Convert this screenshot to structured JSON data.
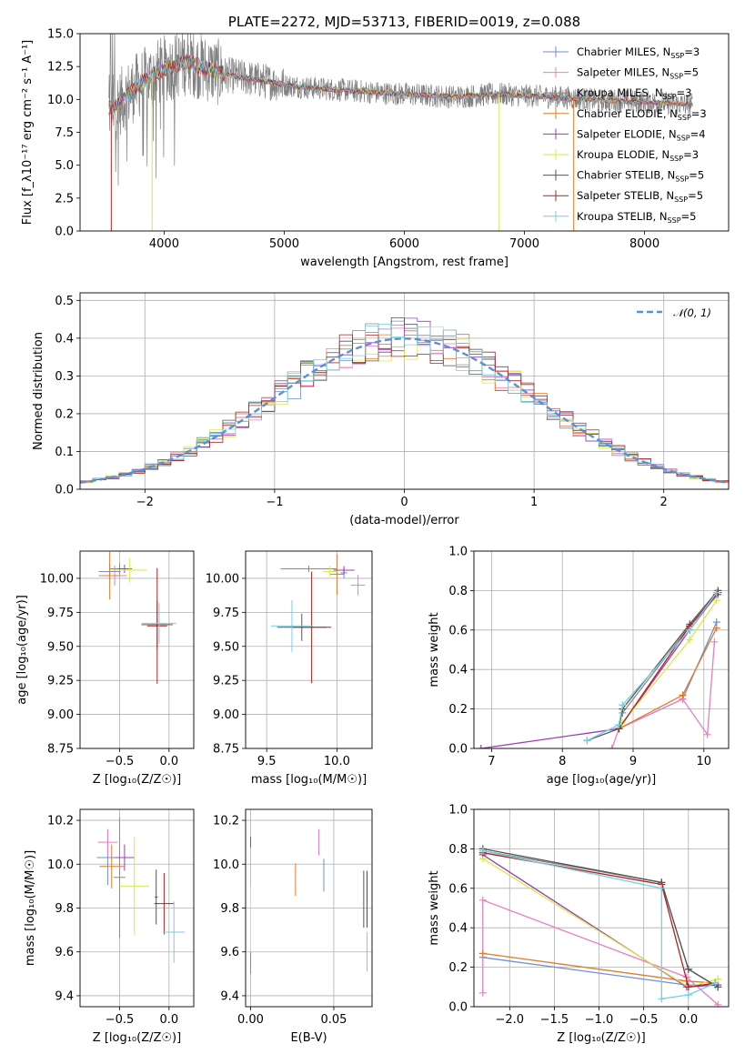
{
  "figure_title": "PLATE=2272, MJD=53713, FIBERID=0019, z=0.088",
  "colors": {
    "Chabrier MILES": "#6d8fd8",
    "Salpeter MILES": "#e87ec0",
    "Kroupa MILES": "#8a8a8a",
    "Chabrier ELODIE": "#e07b2a",
    "Salpeter ELODIE": "#9a3fb3",
    "Kroupa ELODIE": "#d9e84a",
    "Chabrier STELIB": "#555555",
    "Salpeter STELIB": "#b22222",
    "Kroupa STELIB": "#74d0e0",
    "data": "#808080",
    "normal": "#5b8fd8",
    "grid": "#b0b0b0"
  },
  "chart_data": [
    {
      "id": "spectrum",
      "type": "line",
      "title": "PLATE=2272, MJD=53713, FIBERID=0019, z=0.088",
      "xlabel": "wavelength [Angstrom, rest frame]",
      "ylabel": "Flux [f_λ10⁻¹⁷ erg cm⁻² s⁻¹ A⁻¹]",
      "xlim": [
        3300,
        8700
      ],
      "ylim": [
        0,
        15
      ],
      "xticks": [
        "4000",
        "5000",
        "6000",
        "7000",
        "8000"
      ],
      "yticks": [
        "0.0",
        "2.5",
        "5.0",
        "7.5",
        "10.0",
        "12.5",
        "15.0"
      ],
      "grid": false,
      "legend_position": "top-right",
      "legend": [
        {
          "name": "Chabrier MILES",
          "nssp": "3"
        },
        {
          "name": "Salpeter MILES",
          "nssp": "5"
        },
        {
          "name": "Kroupa MILES",
          "nssp": "3"
        },
        {
          "name": "Chabrier ELODIE",
          "nssp": "3"
        },
        {
          "name": "Salpeter ELODIE",
          "nssp": "4"
        },
        {
          "name": "Kroupa ELODIE",
          "nssp": "3"
        },
        {
          "name": "Chabrier STELIB",
          "nssp": "5"
        },
        {
          "name": "Salpeter STELIB",
          "nssp": "5"
        },
        {
          "name": "Kroupa STELIB",
          "nssp": "5"
        }
      ],
      "continuum": [
        [
          3540,
          9.3
        ],
        [
          3600,
          9.5
        ],
        [
          3700,
          10.4
        ],
        [
          3800,
          11.2
        ],
        [
          3900,
          11.8
        ],
        [
          4000,
          12.3
        ],
        [
          4100,
          12.6
        ],
        [
          4200,
          12.9
        ],
        [
          4300,
          12.5
        ],
        [
          4400,
          12.2
        ],
        [
          4500,
          11.9
        ],
        [
          4700,
          11.6
        ],
        [
          4900,
          11.3
        ],
        [
          5000,
          11.1
        ],
        [
          5200,
          10.9
        ],
        [
          5500,
          10.7
        ],
        [
          5800,
          10.5
        ],
        [
          6000,
          10.4
        ],
        [
          6200,
          10.3
        ],
        [
          6400,
          10.2
        ],
        [
          6600,
          10.3
        ],
        [
          6800,
          10.4
        ],
        [
          7000,
          10.3
        ],
        [
          7200,
          10.2
        ],
        [
          7400,
          10.1
        ],
        [
          7600,
          9.95
        ],
        [
          7800,
          9.9
        ],
        [
          8000,
          9.8
        ],
        [
          8200,
          9.7
        ],
        [
          8400,
          9.6
        ]
      ]
    },
    {
      "id": "residuals",
      "type": "line",
      "xlabel": "(data-model)/error",
      "ylabel": "Normed distribution",
      "xlim": [
        -2.5,
        2.5
      ],
      "ylim": [
        0,
        0.52
      ],
      "xticks": [
        "−2",
        "−1",
        "0",
        "1",
        "2"
      ],
      "yticks": [
        "0.0",
        "0.1",
        "0.2",
        "0.3",
        "0.4",
        "0.5"
      ],
      "grid": true,
      "legend_position": "top-right",
      "legend": [
        {
          "name": "𝒩(0, 1)"
        }
      ]
    },
    {
      "id": "age_vs_z",
      "type": "scatter",
      "xlabel": "Z [log₁₀(Z/Z☉)]",
      "ylabel": "age  [log₁₀(age/yr)]",
      "xlim": [
        -0.9,
        0.25
      ],
      "ylim": [
        8.75,
        10.2
      ],
      "xticks": [
        "−0.5",
        "0.0"
      ],
      "yticks": [
        "8.75",
        "9.00",
        "9.25",
        "9.50",
        "9.75",
        "10.00"
      ],
      "grid": true,
      "points": [
        {
          "s": "Chabrier MILES",
          "x": -0.6,
          "y": 10.05,
          "xe": 0.22,
          "ye": 0.12
        },
        {
          "s": "Salpeter MILES",
          "x": -0.55,
          "y": 10.02,
          "xe": 0.25,
          "ye": 0.15
        },
        {
          "s": "Kroupa MILES",
          "x": -0.5,
          "y": 10.07,
          "xe": 0.2,
          "ye": 0.08
        },
        {
          "s": "Chabrier ELODIE",
          "x": -0.6,
          "y": 10.02,
          "xe": 0.22,
          "ye": 0.35
        },
        {
          "s": "Salpeter ELODIE",
          "x": -0.45,
          "y": 10.07,
          "xe": 0.15,
          "ye": 0.06
        },
        {
          "s": "Kroupa ELODIE",
          "x": -0.4,
          "y": 10.06,
          "xe": 0.35,
          "ye": 0.18
        },
        {
          "s": "Chabrier STELIB",
          "x": -0.12,
          "y": 9.66,
          "xe": 0.32,
          "ye": 0.35
        },
        {
          "s": "Salpeter STELIB",
          "x": -0.12,
          "y": 9.65,
          "xe": 0.2,
          "ye": 0.85
        },
        {
          "s": "Kroupa STELIB",
          "x": -0.1,
          "y": 9.67,
          "xe": 0.35,
          "ye": 0.3
        }
      ]
    },
    {
      "id": "age_vs_mass",
      "type": "scatter",
      "xlabel": "mass [log₁₀(M/M☉)]",
      "ylabel": "",
      "xlim": [
        9.35,
        10.25
      ],
      "ylim": [
        8.75,
        10.2
      ],
      "xticks": [
        "9.5",
        "10.0"
      ],
      "yticks": [
        "8.75",
        "9.00",
        "9.25",
        "9.50",
        "9.75",
        "10.00"
      ],
      "grid": true,
      "points": [
        {
          "s": "Chabrier MILES",
          "x": 10.05,
          "y": 10.04,
          "xe": 0.05,
          "ye": 0.08
        },
        {
          "s": "Salpeter MILES",
          "x": 10.15,
          "y": 9.95,
          "xe": 0.1,
          "ye": 0.15
        },
        {
          "s": "Kroupa MILES",
          "x": 9.8,
          "y": 10.07,
          "xe": 0.4,
          "ye": 0.05
        },
        {
          "s": "Chabrier ELODIE",
          "x": 10.0,
          "y": 10.03,
          "xe": 0.1,
          "ye": 0.3
        },
        {
          "s": "Salpeter ELODIE",
          "x": 10.05,
          "y": 10.06,
          "xe": 0.15,
          "ye": 0.06
        },
        {
          "s": "Kroupa ELODIE",
          "x": 9.95,
          "y": 10.05,
          "xe": 0.1,
          "ye": 0.08
        },
        {
          "s": "Chabrier STELIB",
          "x": 9.75,
          "y": 9.64,
          "xe": 0.35,
          "ye": 0.2
        },
        {
          "s": "Salpeter STELIB",
          "x": 9.82,
          "y": 9.64,
          "xe": 0.28,
          "ye": 0.82
        },
        {
          "s": "Kroupa STELIB",
          "x": 9.68,
          "y": 9.65,
          "xe": 0.3,
          "ye": 0.38
        }
      ]
    },
    {
      "id": "weight_vs_age",
      "type": "line",
      "xlabel": "age  [log₁₀(age/yr)]",
      "ylabel": "mass weight",
      "xlim": [
        6.75,
        10.35
      ],
      "ylim": [
        0,
        1
      ],
      "xticks": [
        "7",
        "8",
        "9",
        "10"
      ],
      "yticks": [
        "0.0",
        "0.2",
        "0.4",
        "0.6",
        "0.8",
        "1.0"
      ],
      "grid": true,
      "series": [
        {
          "s": "Chabrier MILES",
          "x": [
            8.8,
            9.7,
            10.18
          ],
          "y": [
            0.1,
            0.25,
            0.64
          ]
        },
        {
          "s": "Salpeter MILES",
          "x": [
            8.7,
            8.8,
            9.7,
            10.05,
            10.15
          ],
          "y": [
            0.0,
            0.1,
            0.25,
            0.07,
            0.54
          ]
        },
        {
          "s": "Kroupa MILES",
          "x": [
            8.85,
            9.8,
            10.2
          ],
          "y": [
            0.18,
            0.62,
            0.78
          ]
        },
        {
          "s": "Chabrier ELODIE",
          "x": [
            8.8,
            9.7,
            10.18
          ],
          "y": [
            0.1,
            0.27,
            0.61
          ]
        },
        {
          "s": "Salpeter ELODIE",
          "x": [
            6.85,
            8.8,
            9.8,
            10.18
          ],
          "y": [
            0.0,
            0.1,
            0.6,
            0.78
          ]
        },
        {
          "s": "Kroupa ELODIE",
          "x": [
            8.85,
            9.8,
            10.18
          ],
          "y": [
            0.13,
            0.55,
            0.75
          ]
        },
        {
          "s": "Chabrier STELIB",
          "x": [
            8.35,
            8.8,
            8.85,
            9.8,
            10.2
          ],
          "y": [
            0.04,
            0.1,
            0.2,
            0.63,
            0.8
          ]
        },
        {
          "s": "Salpeter STELIB",
          "x": [
            8.8,
            9.8,
            10.2
          ],
          "y": [
            0.1,
            0.62,
            0.79
          ]
        },
        {
          "s": "Kroupa STELIB",
          "x": [
            8.35,
            8.8,
            8.85,
            9.8,
            10.18
          ],
          "y": [
            0.04,
            0.12,
            0.22,
            0.6,
            0.79
          ]
        }
      ]
    },
    {
      "id": "mass_vs_z",
      "type": "scatter",
      "xlabel": "Z [log₁₀(Z/Z☉)]",
      "ylabel": "mass [log₁₀(M/M☉)]",
      "xlim": [
        -0.9,
        0.25
      ],
      "ylim": [
        9.35,
        10.25
      ],
      "xticks": [
        "−0.5",
        "0.0"
      ],
      "yticks": [
        "9.4",
        "9.6",
        "9.8",
        "10.0",
        "10.2"
      ],
      "grid": true,
      "points": [
        {
          "s": "Chabrier MILES",
          "x": -0.62,
          "y": 10.03,
          "xe": 0.22,
          "ye": 0.25
        },
        {
          "s": "Salpeter MILES",
          "x": -0.62,
          "y": 10.1,
          "xe": 0.2,
          "ye": 0.12
        },
        {
          "s": "Kroupa MILES",
          "x": -0.5,
          "y": 9.94,
          "xe": 0.12,
          "ye": 0.55
        },
        {
          "s": "Chabrier ELODIE",
          "x": -0.58,
          "y": 9.99,
          "xe": 0.25,
          "ye": 0.2
        },
        {
          "s": "Salpeter ELODIE",
          "x": -0.45,
          "y": 10.03,
          "xe": 0.2,
          "ye": 0.12
        },
        {
          "s": "Kroupa ELODIE",
          "x": -0.35,
          "y": 9.9,
          "xe": 0.3,
          "ye": 0.45
        },
        {
          "s": "Chabrier STELIB",
          "x": -0.13,
          "y": 9.85,
          "xe": 0.03,
          "ye": 0.25
        },
        {
          "s": "Salpeter STELIB",
          "x": -0.05,
          "y": 9.82,
          "xe": 0.2,
          "ye": 0.28
        },
        {
          "s": "Kroupa STELIB",
          "x": 0.05,
          "y": 9.69,
          "xe": 0.22,
          "ye": 0.28
        }
      ]
    },
    {
      "id": "mass_vs_ebv",
      "type": "scatter",
      "xlabel": "E(B-V)",
      "ylabel": "",
      "xlim": [
        -0.003,
        0.073
      ],
      "ylim": [
        9.35,
        10.25
      ],
      "xticks": [
        "0.00",
        "0.05"
      ],
      "yticks": [
        "9.4",
        "9.6",
        "9.8",
        "10.0",
        "10.2"
      ],
      "grid": true,
      "points": [
        {
          "s": "Chabrier MILES",
          "x": 0.044,
          "y": 9.95,
          "xe": 0,
          "ye": 0.15
        },
        {
          "s": "Salpeter MILES",
          "x": 0.041,
          "y": 10.1,
          "xe": 0,
          "ye": 0.12
        },
        {
          "s": "Kroupa MILES",
          "x": 0.0,
          "y": 9.6,
          "xe": 0,
          "ye": 0.2
        },
        {
          "s": "Chabrier ELODIE",
          "x": 0.027,
          "y": 9.93,
          "xe": 0,
          "ye": 0.15
        },
        {
          "s": "Salpeter ELODIE",
          "x": 0.0,
          "y": 10.1,
          "xe": 0,
          "ye": 0.05
        },
        {
          "s": "Kroupa ELODIE",
          "x": 0.0,
          "y": 9.75,
          "xe": 0,
          "ye": 0.3
        },
        {
          "s": "Chabrier STELIB",
          "x": 0.068,
          "y": 9.84,
          "xe": 0,
          "ye": 0.26
        },
        {
          "s": "Salpeter STELIB",
          "x": 0.07,
          "y": 9.84,
          "xe": 0,
          "ye": 0.26
        },
        {
          "s": "Kroupa STELIB",
          "x": 0.07,
          "y": 9.6,
          "xe": 0,
          "ye": 0.18
        }
      ]
    },
    {
      "id": "weight_vs_z",
      "type": "line",
      "xlabel": "Z [log₁₀(Z/Z☉)]",
      "ylabel": "mass weight",
      "xlim": [
        -2.4,
        0.45
      ],
      "ylim": [
        0,
        1
      ],
      "xticks": [
        "−2.0",
        "−1.5",
        "−1.0",
        "−0.5",
        "0.0"
      ],
      "yticks": [
        "0.0",
        "0.2",
        "0.4",
        "0.6",
        "0.8",
        "1.0"
      ],
      "grid": true,
      "series": [
        {
          "s": "Chabrier MILES",
          "x": [
            -2.3,
            -0.02,
            0.3
          ],
          "y": [
            0.25,
            0.11,
            0.11
          ]
        },
        {
          "s": "Salpeter MILES",
          "x": [
            -2.3,
            -2.3,
            -0.02,
            0.33
          ],
          "y": [
            0.07,
            0.54,
            0.15,
            0.01
          ]
        },
        {
          "s": "Kroupa MILES",
          "x": [
            -2.3,
            -0.3,
            0.0,
            0.33
          ],
          "y": [
            0.79,
            0.63,
            0.19,
            0.1
          ]
        },
        {
          "s": "Chabrier ELODIE",
          "x": [
            -2.3,
            -0.02,
            0.3
          ],
          "y": [
            0.27,
            0.13,
            0.12
          ]
        },
        {
          "s": "Salpeter ELODIE",
          "x": [
            -2.3,
            -0.02,
            0.33
          ],
          "y": [
            0.77,
            0.1,
            0.11
          ]
        },
        {
          "s": "Kroupa ELODIE",
          "x": [
            -2.3,
            0.0,
            0.33
          ],
          "y": [
            0.75,
            0.1,
            0.14
          ]
        },
        {
          "s": "Chabrier STELIB",
          "x": [
            -2.3,
            -0.3,
            0.0,
            0.33
          ],
          "y": [
            0.8,
            0.63,
            0.19,
            0.1
          ]
        },
        {
          "s": "Salpeter STELIB",
          "x": [
            -2.3,
            -0.3,
            0.0,
            0.3
          ],
          "y": [
            0.78,
            0.62,
            0.1,
            0.12
          ]
        },
        {
          "s": "Kroupa STELIB",
          "x": [
            -2.3,
            -0.3,
            -0.3,
            0.0,
            0.3
          ],
          "y": [
            0.79,
            0.6,
            0.04,
            0.06,
            0.12
          ]
        }
      ]
    }
  ]
}
